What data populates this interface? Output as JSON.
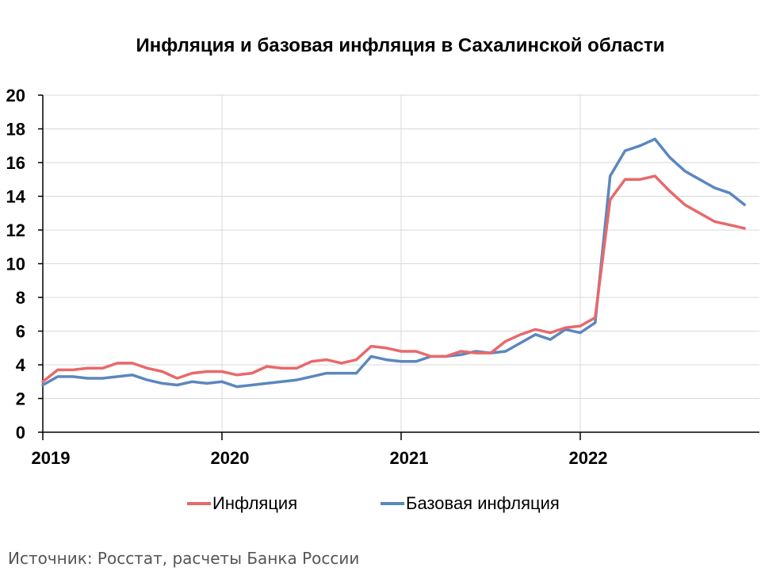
{
  "chart_data": {
    "type": "line",
    "title": "Инфляция и базовая инфляция в Сахалинской области",
    "xlabel": "",
    "ylabel": "",
    "ylim": [
      0,
      20
    ],
    "yticks": [
      "0",
      "2",
      "4",
      "6",
      "8",
      "10",
      "12",
      "14",
      "16",
      "18",
      "20"
    ],
    "xticks": [
      "2019",
      "2020",
      "2021",
      "2022"
    ],
    "x_start": "2019-01",
    "grid": true,
    "legend_position": "bottom",
    "series": [
      {
        "name": "Инфляция",
        "color": "#e8696b",
        "values": [
          3.0,
          3.7,
          3.7,
          3.8,
          3.8,
          4.1,
          4.1,
          3.8,
          3.6,
          3.2,
          3.5,
          3.6,
          3.6,
          3.4,
          3.5,
          3.9,
          3.8,
          3.8,
          4.2,
          4.3,
          4.1,
          4.3,
          5.1,
          5.0,
          4.8,
          4.8,
          4.5,
          4.5,
          4.8,
          4.7,
          4.7,
          5.4,
          5.8,
          6.1,
          5.9,
          6.2,
          6.3,
          6.8,
          13.8,
          15.0,
          15.0,
          15.2,
          14.3,
          13.5,
          13.0,
          12.5,
          12.3,
          12.1
        ]
      },
      {
        "name": "Базовая инфляция",
        "color": "#5b87be",
        "values": [
          2.8,
          3.3,
          3.3,
          3.2,
          3.2,
          3.3,
          3.4,
          3.1,
          2.9,
          2.8,
          3.0,
          2.9,
          3.0,
          2.7,
          2.8,
          2.9,
          3.0,
          3.1,
          3.3,
          3.5,
          3.5,
          3.5,
          4.5,
          4.3,
          4.2,
          4.2,
          4.5,
          4.5,
          4.6,
          4.8,
          4.7,
          4.8,
          5.3,
          5.8,
          5.5,
          6.1,
          5.9,
          6.5,
          15.2,
          16.7,
          17.0,
          17.4,
          16.3,
          15.5,
          15.0,
          14.5,
          14.2,
          13.5
        ]
      }
    ]
  },
  "source_text": "Источник: Росстат, расчеты Банка России"
}
